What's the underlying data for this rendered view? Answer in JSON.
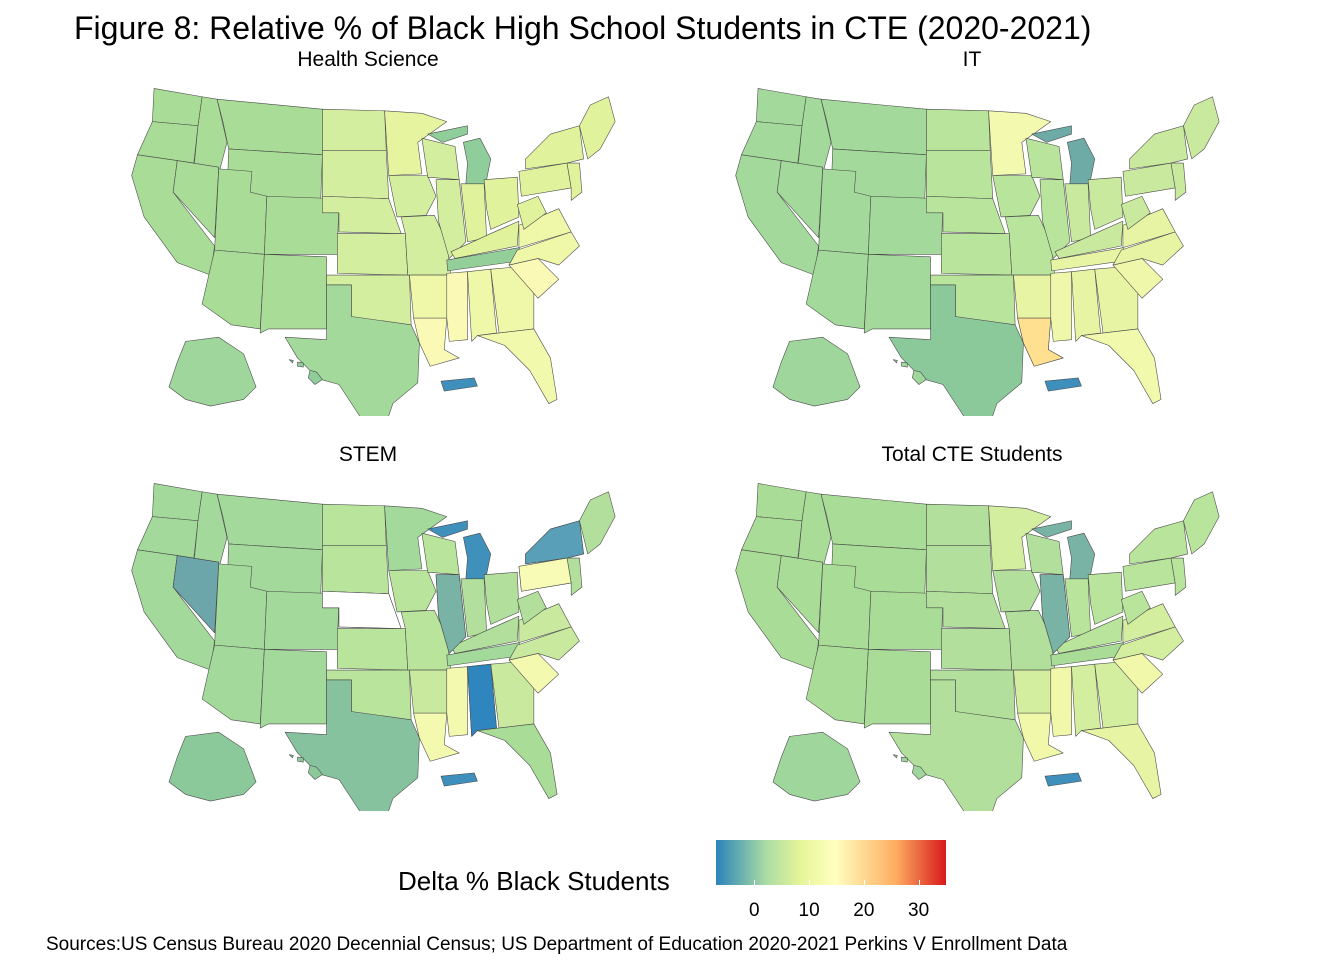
{
  "title": "Figure 8: Relative % of Black High School Students in CTE (2020-2021)",
  "panels": [
    {
      "label": "Health  Science",
      "colors": {
        "north": "#a9dc97",
        "midwest": "#d4eea0",
        "east": "#e1f29c",
        "south": "#eef8a8",
        "deep_south": "#fbf9b6",
        "florida": "#f1f9ad",
        "texas": "#a3d99a",
        "michigan": "#8fcd9a",
        "tennessee": "#94cf9a",
        "minnesota": "#e6f49f",
        "alaska": "#9fd69b",
        "hawaii": "#8fcd9a",
        "puerto_rico": "#3e8fbb"
      }
    },
    {
      "label": "IT",
      "colors": {
        "north": "#a3d99a",
        "midwest": "#b9e49c",
        "east": "#c9ea9e",
        "south": "#e6f4a4",
        "deep_south": "#eff8aa",
        "florida": "#f1f9ad",
        "texas": "#8bc99b",
        "michigan": "#6eaba6",
        "tennessee": "#e6f4a4",
        "minnesota": "#f4f9b0",
        "louisiana": "#fee090",
        "alaska": "#9fd69b",
        "hawaii": "#9fd69b",
        "puerto_rico": "#3e8fbb"
      }
    },
    {
      "label": "STEM",
      "colors": {
        "north": "#a3d99a",
        "midwest": "#b9e49c",
        "east": "#b2e09c",
        "south": "#c9ea9e",
        "deep_south": "#f4f9b0",
        "florida": "#a9dc97",
        "texas": "#86c29d",
        "michigan": "#3f90bb",
        "new_york": "#5a9fb8",
        "illinois": "#79b3a5",
        "nevada": "#6ca6ab",
        "alabama": "#2f86bf",
        "nebraska": "#ffffff",
        "pennsylvania": "#f7fbb5",
        "alaska": "#8bc99b",
        "hawaii": "#8bc99b",
        "puerto_rico": "#3e8fbb"
      }
    },
    {
      "label": "Total  CTE  Students",
      "colors": {
        "north": "#a9dc97",
        "midwest": "#b2e09c",
        "east": "#b9e49c",
        "south": "#d4eea0",
        "deep_south": "#f1f8aa",
        "florida": "#e6f4a4",
        "texas": "#b2e09c",
        "michigan": "#79b3a5",
        "illinois": "#79b3a5",
        "minnesota": "#d4eea0",
        "alaska": "#9fd69b",
        "hawaii": "#9fd69b",
        "puerto_rico": "#3e8fbb"
      }
    }
  ],
  "legend": {
    "title": "Delta % Black Students",
    "ticks": [
      "0",
      "10",
      "20",
      "30"
    ],
    "tick_values": [
      0,
      10,
      20,
      30
    ],
    "range": [
      -7,
      35
    ]
  },
  "source": "Sources:US Census Bureau 2020 Decennial Census; US Department of Education 2020-2021 Perkins V Enrollment Data"
}
